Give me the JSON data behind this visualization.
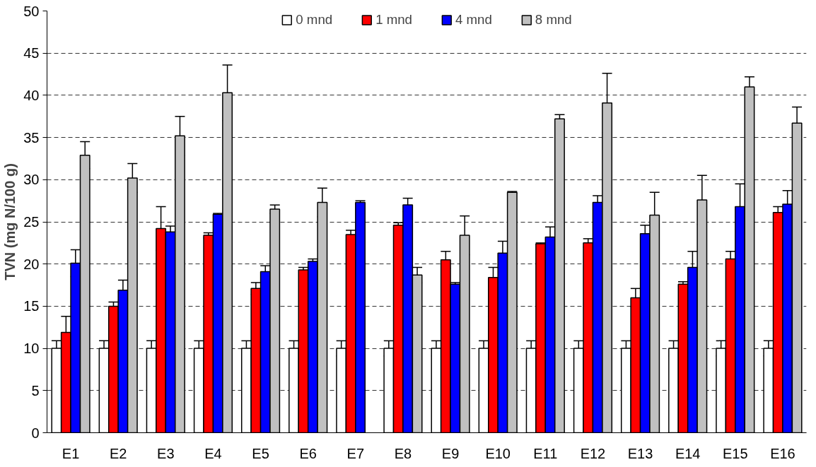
{
  "chart_data": {
    "type": "bar",
    "ylabel": "TVN (mg N/100 g)",
    "categories": [
      "E1",
      "E2",
      "E3",
      "E4",
      "E5",
      "E6",
      "E7",
      "E8",
      "E9",
      "E10",
      "E11",
      "E12",
      "E13",
      "E14",
      "E15",
      "E16"
    ],
    "ylim": [
      0,
      50
    ],
    "yticks": [
      0,
      5,
      10,
      15,
      20,
      25,
      30,
      35,
      40,
      45,
      50
    ],
    "grid": "y",
    "legend": "top",
    "series": [
      {
        "name": "0 mnd",
        "color": "#ffffff",
        "values": [
          10,
          10,
          10,
          10,
          10,
          10,
          10,
          10,
          10,
          10,
          10,
          10,
          10,
          10,
          10,
          10
        ],
        "errors": [
          0.9,
          0.9,
          0.9,
          0.9,
          0.9,
          0.9,
          0.9,
          0.9,
          0.9,
          0.9,
          0.9,
          0.9,
          0.9,
          0.9,
          0.9,
          0.9
        ]
      },
      {
        "name": "1 mnd",
        "color": "#ff0000",
        "values": [
          11.9,
          15.0,
          24.2,
          23.4,
          17.1,
          19.3,
          23.5,
          24.6,
          20.5,
          18.4,
          22.4,
          22.5,
          16.0,
          17.6,
          20.6,
          26.1
        ],
        "errors": [
          1.9,
          0.5,
          2.6,
          0.3,
          0.7,
          0.3,
          0.5,
          0.3,
          1.0,
          1.2,
          0.1,
          0.5,
          1.1,
          0.3,
          0.9,
          0.7
        ]
      },
      {
        "name": "4 mnd",
        "color": "#0000ff",
        "values": [
          20.1,
          16.9,
          23.8,
          25.9,
          19.1,
          20.3,
          27.3,
          27.0,
          17.6,
          21.3,
          23.2,
          27.3,
          23.6,
          19.6,
          26.8,
          27.1
        ],
        "errors": [
          1.6,
          1.2,
          0.7,
          0.1,
          0.7,
          0.3,
          0.2,
          0.8,
          0.2,
          1.4,
          1.2,
          0.8,
          1.0,
          1.9,
          2.7,
          1.6
        ]
      },
      {
        "name": "8 mnd",
        "color": "#c0c0c0",
        "values": [
          32.9,
          30.2,
          35.2,
          40.3,
          26.5,
          27.3,
          null,
          18.7,
          23.4,
          28.5,
          37.2,
          39.1,
          25.8,
          27.6,
          41.0,
          36.7
        ],
        "errors": [
          1.6,
          1.7,
          2.3,
          3.3,
          0.5,
          1.7,
          null,
          0.9,
          2.3,
          0.1,
          0.5,
          3.5,
          2.7,
          2.9,
          1.2,
          1.9
        ]
      }
    ]
  }
}
